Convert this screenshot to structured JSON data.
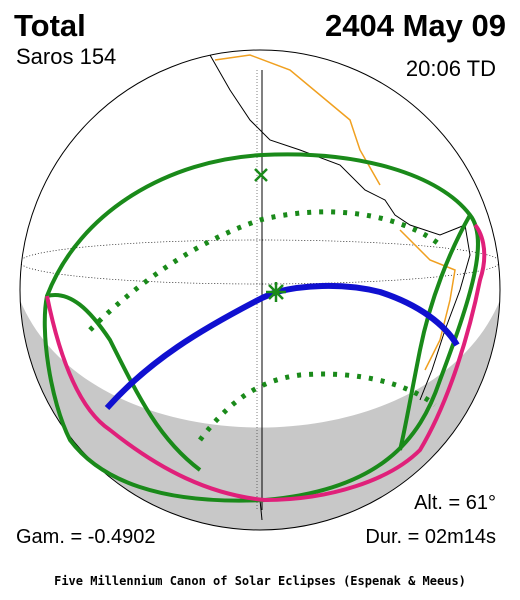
{
  "header": {
    "title": "Total",
    "date": "2404 May 09",
    "saros": "Saros 154",
    "time": "20:06 TD"
  },
  "info": {
    "altitude": "Alt. = 61°",
    "gamma": "Gam. = -0.4902",
    "duration": "Dur. = 02m14s"
  },
  "footer": "Five Millennium Canon of Solar Eclipses (Espenak & Meeus)"
}
